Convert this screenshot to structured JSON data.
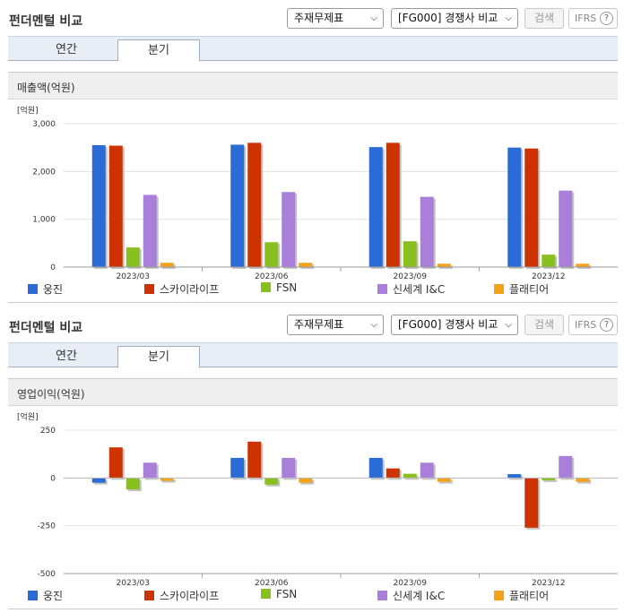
{
  "panels": [
    {
      "title": "펀더멘털 비교",
      "select_statement": "주재무제표",
      "select_compare": "[FG000] 경쟁사 비교",
      "search_button": "검색",
      "ifrs_label": "IFRS",
      "help_glyph": "?",
      "tabs": [
        "연간",
        "분기"
      ],
      "active_tab": 1,
      "chart_title": "매출액(억원)"
    },
    {
      "title": "펀더멘털 비교",
      "select_statement": "주재무제표",
      "select_compare": "[FG000] 경쟁사 비교",
      "search_button": "검색",
      "ifrs_label": "IFRS",
      "help_glyph": "?",
      "tabs": [
        "연간",
        "분기"
      ],
      "active_tab": 1,
      "chart_title": "영업이익(억원)"
    }
  ],
  "chart_data": [
    {
      "type": "bar",
      "unit_label": "[억원]",
      "categories": [
        "2023/03",
        "2023/06",
        "2023/09",
        "2023/12"
      ],
      "ylim": [
        0,
        3000
      ],
      "yticks": [
        0,
        1000,
        2000,
        3000
      ],
      "ytick_labels": [
        "0",
        "1,000",
        "2,000",
        "3,000"
      ],
      "legend_placement": "bottom",
      "series": [
        {
          "name": "웅진",
          "color": "#2b6bd6",
          "values": [
            2550,
            2560,
            2510,
            2500
          ]
        },
        {
          "name": "스카이라이프",
          "color": "#cc3300",
          "values": [
            2540,
            2600,
            2600,
            2480
          ]
        },
        {
          "name": "FSN",
          "color": "#88c020",
          "values": [
            410,
            520,
            540,
            260
          ]
        },
        {
          "name": "신세계 I&C",
          "color": "#a97fd9",
          "values": [
            1510,
            1570,
            1470,
            1600
          ]
        },
        {
          "name": "플래티어",
          "color": "#f5a21b",
          "values": [
            90,
            90,
            70,
            70
          ]
        }
      ]
    },
    {
      "type": "bar",
      "unit_label": "[억원]",
      "categories": [
        "2023/03",
        "2023/06",
        "2023/09",
        "2023/12"
      ],
      "ylim": [
        -500,
        250
      ],
      "yticks": [
        -500,
        -250,
        0,
        250
      ],
      "ytick_labels": [
        "-500",
        "-250",
        "0",
        "250"
      ],
      "legend_placement": "bottom",
      "series": [
        {
          "name": "웅진",
          "color": "#2b6bd6",
          "values": [
            -25,
            105,
            105,
            20
          ]
        },
        {
          "name": "스카이라이프",
          "color": "#cc3300",
          "values": [
            160,
            190,
            50,
            -260
          ]
        },
        {
          "name": "FSN",
          "color": "#88c020",
          "values": [
            -60,
            -35,
            22,
            -12
          ]
        },
        {
          "name": "신세계 I&C",
          "color": "#a97fd9",
          "values": [
            80,
            105,
            80,
            115
          ]
        },
        {
          "name": "플래티어",
          "color": "#f5a21b",
          "values": [
            -15,
            -25,
            -20,
            -20
          ]
        }
      ]
    }
  ]
}
